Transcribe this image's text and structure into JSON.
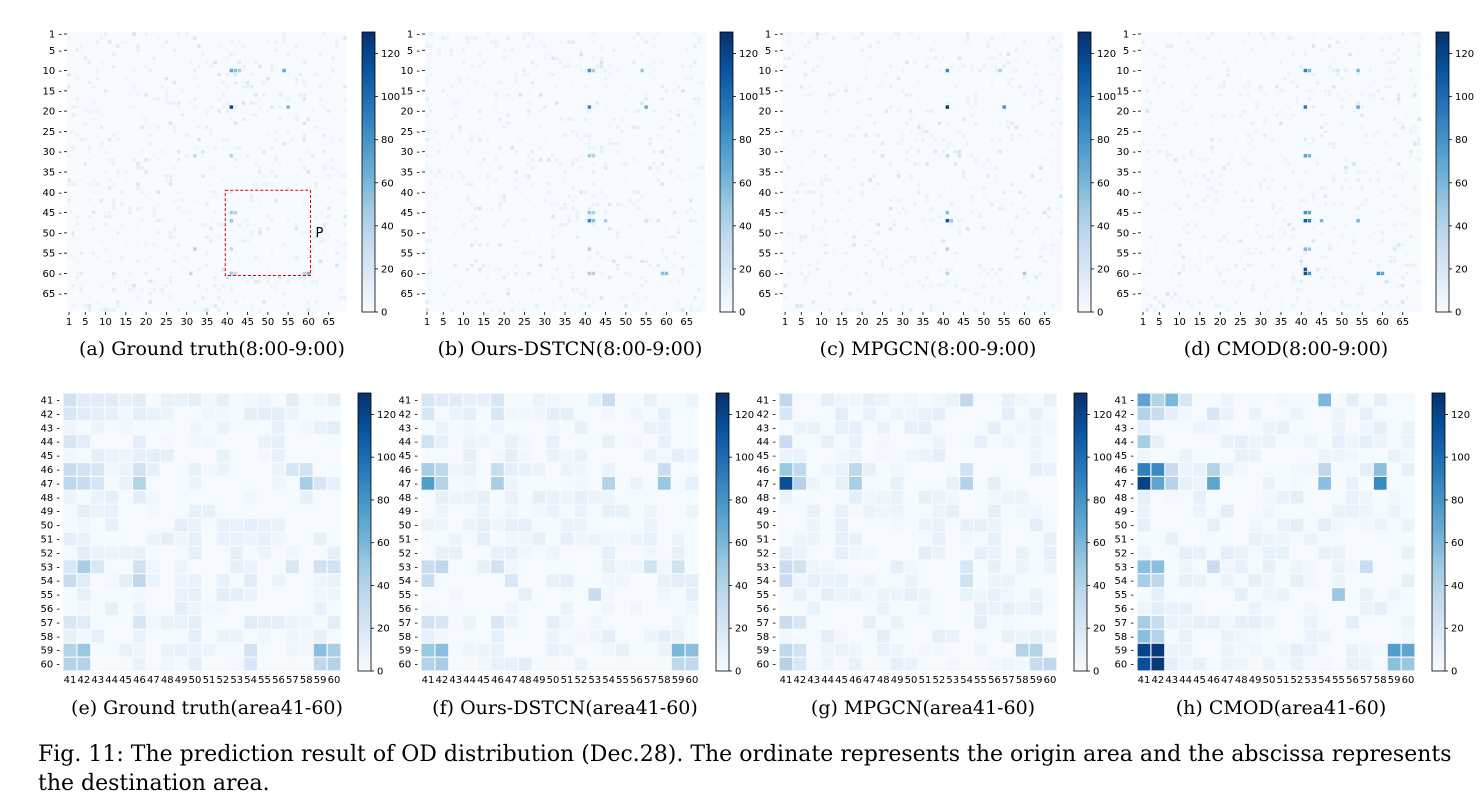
{
  "colorscale": {
    "low": "#f7fbff",
    "mid": "#6baed6",
    "high": "#08306b"
  },
  "figure_caption": "Fig. 11: The prediction result of OD distribution (Dec.28). The ordinate represents the origin area and the abscissa represents the destination area.",
  "chart_data": [
    {
      "type": "heatmap",
      "caption": "(a) Ground truth(8:00-9:00)",
      "scope": "full",
      "x_ticks": [
        "1",
        "5",
        "10",
        "15",
        "20",
        "25",
        "30",
        "35",
        "40",
        "45",
        "50",
        "55",
        "60",
        "65"
      ],
      "y_ticks": [
        "1",
        "5",
        "10",
        "15",
        "20",
        "25",
        "30",
        "35",
        "40",
        "45",
        "50",
        "55",
        "60",
        "65"
      ],
      "colorbar_ticks": [
        "0",
        "20",
        "40",
        "60",
        "80",
        "100",
        "120"
      ],
      "zlim": [
        0,
        130
      ],
      "annotation": "P",
      "hotspots": [
        [
          9,
          40,
          70
        ],
        [
          9,
          41,
          55
        ],
        [
          9,
          42,
          45
        ],
        [
          9,
          53,
          70
        ],
        [
          18,
          40,
          120
        ],
        [
          18,
          54,
          60
        ],
        [
          30,
          40,
          40
        ],
        [
          30,
          31,
          35
        ],
        [
          44,
          40,
          45
        ],
        [
          44,
          41,
          40
        ],
        [
          46,
          40,
          50
        ],
        [
          53,
          40,
          35
        ],
        [
          53,
          31,
          40
        ],
        [
          59,
          40,
          45
        ],
        [
          59,
          41,
          35
        ],
        [
          59,
          59,
          60
        ],
        [
          59,
          58,
          40
        ],
        [
          59,
          30,
          35
        ]
      ]
    },
    {
      "type": "heatmap",
      "caption": "(b) Ours-DSTCN(8:00-9:00)",
      "scope": "full",
      "x_ticks": [
        "1",
        "5",
        "10",
        "15",
        "20",
        "25",
        "30",
        "35",
        "40",
        "45",
        "50",
        "55",
        "60",
        "65"
      ],
      "y_ticks": [
        "1",
        "5",
        "10",
        "15",
        "20",
        "25",
        "30",
        "35",
        "40",
        "45",
        "50",
        "55",
        "60",
        "65"
      ],
      "colorbar_ticks": [
        "0",
        "20",
        "40",
        "60",
        "80",
        "100",
        "120"
      ],
      "zlim": [
        0,
        130
      ],
      "hotspots": [
        [
          9,
          40,
          80
        ],
        [
          9,
          41,
          45
        ],
        [
          9,
          53,
          50
        ],
        [
          18,
          40,
          85
        ],
        [
          18,
          54,
          65
        ],
        [
          30,
          40,
          45
        ],
        [
          30,
          41,
          40
        ],
        [
          44,
          40,
          50
        ],
        [
          44,
          41,
          45
        ],
        [
          46,
          40,
          85
        ],
        [
          46,
          41,
          55
        ],
        [
          46,
          44,
          45
        ],
        [
          53,
          40,
          40
        ],
        [
          59,
          40,
          40
        ],
        [
          59,
          41,
          40
        ],
        [
          59,
          58,
          55
        ],
        [
          59,
          59,
          55
        ]
      ]
    },
    {
      "type": "heatmap",
      "caption": "(c) MPGCN(8:00-9:00)",
      "scope": "full",
      "x_ticks": [
        "1",
        "5",
        "10",
        "15",
        "20",
        "25",
        "30",
        "35",
        "40",
        "45",
        "50",
        "55",
        "60",
        "65"
      ],
      "y_ticks": [
        "1",
        "5",
        "10",
        "15",
        "20",
        "25",
        "30",
        "35",
        "40",
        "45",
        "50",
        "55",
        "60",
        "65"
      ],
      "colorbar_ticks": [
        "0",
        "20",
        "40",
        "60",
        "80",
        "100",
        "120"
      ],
      "zlim": [
        0,
        130
      ],
      "hotspots": [
        [
          9,
          40,
          85
        ],
        [
          9,
          53,
          45
        ],
        [
          18,
          40,
          125
        ],
        [
          18,
          54,
          80
        ],
        [
          30,
          40,
          35
        ],
        [
          44,
          40,
          55
        ],
        [
          46,
          40,
          110
        ],
        [
          46,
          41,
          50
        ],
        [
          53,
          40,
          40
        ],
        [
          59,
          40,
          40
        ],
        [
          59,
          59,
          45
        ]
      ]
    },
    {
      "type": "heatmap",
      "caption": "(d) CMOD(8:00-9:00)",
      "scope": "full",
      "x_ticks": [
        "1",
        "5",
        "10",
        "15",
        "20",
        "25",
        "30",
        "35",
        "40",
        "45",
        "50",
        "55",
        "60",
        "65"
      ],
      "y_ticks": [
        "1",
        "5",
        "10",
        "15",
        "20",
        "25",
        "30",
        "35",
        "40",
        "45",
        "50",
        "55",
        "60",
        "65"
      ],
      "colorbar_ticks": [
        "0",
        "20",
        "40",
        "60",
        "80",
        "100",
        "120"
      ],
      "zlim": [
        0,
        130
      ],
      "hotspots": [
        [
          9,
          40,
          90
        ],
        [
          9,
          41,
          60
        ],
        [
          9,
          53,
          60
        ],
        [
          18,
          40,
          95
        ],
        [
          18,
          53,
          70
        ],
        [
          30,
          40,
          70
        ],
        [
          30,
          41,
          60
        ],
        [
          44,
          40,
          80
        ],
        [
          44,
          41,
          70
        ],
        [
          46,
          40,
          110
        ],
        [
          46,
          41,
          90
        ],
        [
          46,
          44,
          60
        ],
        [
          46,
          53,
          60
        ],
        [
          53,
          40,
          60
        ],
        [
          53,
          41,
          50
        ],
        [
          58,
          40,
          110
        ],
        [
          59,
          40,
          115
        ],
        [
          59,
          41,
          80
        ],
        [
          59,
          58,
          80
        ],
        [
          59,
          59,
          70
        ]
      ]
    },
    {
      "type": "heatmap",
      "caption": "(e) Ground truth(area41-60)",
      "scope": "zoom",
      "labels": [
        "41",
        "42",
        "43",
        "44",
        "45",
        "46",
        "47",
        "48",
        "49",
        "50",
        "51",
        "52",
        "53",
        "54",
        "55",
        "56",
        "57",
        "58",
        "59",
        "60"
      ],
      "colorbar_ticks": [
        "0",
        "20",
        "40",
        "60",
        "80",
        "100",
        "120"
      ],
      "zlim": [
        0,
        130
      ],
      "hotspots": [
        [
          0,
          0,
          25
        ],
        [
          0,
          1,
          15
        ],
        [
          0,
          2,
          15
        ],
        [
          0,
          3,
          15
        ],
        [
          0,
          5,
          15
        ],
        [
          1,
          0,
          20
        ],
        [
          1,
          1,
          15
        ],
        [
          1,
          2,
          12
        ],
        [
          1,
          5,
          12
        ],
        [
          3,
          0,
          20
        ],
        [
          3,
          5,
          12
        ],
        [
          5,
          0,
          30
        ],
        [
          5,
          1,
          25
        ],
        [
          5,
          2,
          20
        ],
        [
          5,
          5,
          25
        ],
        [
          5,
          16,
          20
        ],
        [
          5,
          17,
          25
        ],
        [
          6,
          0,
          35
        ],
        [
          6,
          1,
          30
        ],
        [
          6,
          2,
          20
        ],
        [
          6,
          5,
          40
        ],
        [
          6,
          17,
          45
        ],
        [
          6,
          18,
          20
        ],
        [
          12,
          0,
          20
        ],
        [
          12,
          1,
          45
        ],
        [
          12,
          2,
          20
        ],
        [
          12,
          5,
          25
        ],
        [
          12,
          16,
          20
        ],
        [
          12,
          18,
          25
        ],
        [
          12,
          19,
          25
        ],
        [
          13,
          0,
          30
        ],
        [
          13,
          1,
          15
        ],
        [
          13,
          5,
          35
        ],
        [
          13,
          13,
          15
        ],
        [
          16,
          0,
          20
        ],
        [
          16,
          1,
          15
        ],
        [
          16,
          5,
          20
        ],
        [
          16,
          13,
          15
        ],
        [
          18,
          0,
          40
        ],
        [
          18,
          1,
          50
        ],
        [
          18,
          13,
          25
        ],
        [
          18,
          18,
          55
        ],
        [
          18,
          19,
          45
        ],
        [
          19,
          0,
          40
        ],
        [
          19,
          1,
          40
        ],
        [
          19,
          13,
          20
        ],
        [
          19,
          18,
          35
        ],
        [
          19,
          19,
          40
        ]
      ]
    },
    {
      "type": "heatmap",
      "caption": "(f) Ours-DSTCN(area41-60)",
      "scope": "zoom",
      "labels": [
        "41",
        "42",
        "43",
        "44",
        "45",
        "46",
        "47",
        "48",
        "49",
        "50",
        "51",
        "52",
        "53",
        "54",
        "55",
        "56",
        "57",
        "58",
        "59",
        "60"
      ],
      "colorbar_ticks": [
        "0",
        "20",
        "40",
        "60",
        "80",
        "100",
        "120"
      ],
      "zlim": [
        0,
        130
      ],
      "hotspots": [
        [
          0,
          0,
          20
        ],
        [
          0,
          1,
          15
        ],
        [
          0,
          2,
          15
        ],
        [
          0,
          5,
          20
        ],
        [
          0,
          13,
          30
        ],
        [
          1,
          0,
          20
        ],
        [
          1,
          5,
          20
        ],
        [
          3,
          0,
          25
        ],
        [
          5,
          0,
          45
        ],
        [
          5,
          1,
          35
        ],
        [
          5,
          5,
          30
        ],
        [
          5,
          17,
          30
        ],
        [
          6,
          0,
          75
        ],
        [
          6,
          1,
          40
        ],
        [
          6,
          5,
          45
        ],
        [
          6,
          13,
          40
        ],
        [
          6,
          17,
          50
        ],
        [
          12,
          0,
          30
        ],
        [
          12,
          1,
          35
        ],
        [
          12,
          5,
          25
        ],
        [
          12,
          16,
          25
        ],
        [
          12,
          18,
          25
        ],
        [
          13,
          0,
          30
        ],
        [
          13,
          6,
          20
        ],
        [
          14,
          12,
          30
        ],
        [
          16,
          0,
          25
        ],
        [
          16,
          1,
          20
        ],
        [
          16,
          5,
          20
        ],
        [
          18,
          0,
          50
        ],
        [
          18,
          1,
          55
        ],
        [
          18,
          18,
          60
        ],
        [
          18,
          19,
          55
        ],
        [
          19,
          0,
          40
        ],
        [
          19,
          1,
          45
        ],
        [
          19,
          18,
          35
        ],
        [
          19,
          19,
          35
        ]
      ]
    },
    {
      "type": "heatmap",
      "caption": "(g) MPGCN(area41-60)",
      "scope": "zoom",
      "labels": [
        "41",
        "42",
        "43",
        "44",
        "45",
        "46",
        "47",
        "48",
        "49",
        "50",
        "51",
        "52",
        "53",
        "54",
        "55",
        "56",
        "57",
        "58",
        "59",
        "60"
      ],
      "colorbar_ticks": [
        "0",
        "20",
        "40",
        "60",
        "80",
        "100",
        "120"
      ],
      "zlim": [
        0,
        130
      ],
      "hotspots": [
        [
          0,
          0,
          35
        ],
        [
          0,
          13,
          35
        ],
        [
          1,
          0,
          20
        ],
        [
          3,
          0,
          30
        ],
        [
          5,
          0,
          50
        ],
        [
          5,
          1,
          35
        ],
        [
          5,
          5,
          35
        ],
        [
          5,
          13,
          25
        ],
        [
          6,
          0,
          115
        ],
        [
          6,
          1,
          40
        ],
        [
          6,
          5,
          45
        ],
        [
          6,
          13,
          40
        ],
        [
          12,
          0,
          30
        ],
        [
          12,
          1,
          25
        ],
        [
          12,
          13,
          20
        ],
        [
          13,
          0,
          30
        ],
        [
          13,
          13,
          25
        ],
        [
          16,
          0,
          30
        ],
        [
          16,
          1,
          20
        ],
        [
          18,
          0,
          35
        ],
        [
          18,
          1,
          25
        ],
        [
          18,
          17,
          40
        ],
        [
          18,
          18,
          40
        ],
        [
          19,
          0,
          40
        ],
        [
          19,
          1,
          20
        ],
        [
          19,
          18,
          30
        ],
        [
          19,
          19,
          35
        ]
      ]
    },
    {
      "type": "heatmap",
      "caption": "(h) CMOD(area41-60)",
      "scope": "zoom",
      "labels": [
        "41",
        "42",
        "43",
        "44",
        "45",
        "46",
        "47",
        "48",
        "49",
        "50",
        "51",
        "52",
        "53",
        "54",
        "55",
        "56",
        "57",
        "58",
        "59",
        "60"
      ],
      "colorbar_ticks": [
        "0",
        "20",
        "40",
        "60",
        "80",
        "100",
        "120"
      ],
      "zlim": [
        0,
        130
      ],
      "hotspots": [
        [
          0,
          0,
          70
        ],
        [
          0,
          1,
          40
        ],
        [
          0,
          2,
          60
        ],
        [
          0,
          3,
          20
        ],
        [
          0,
          13,
          60
        ],
        [
          1,
          0,
          40
        ],
        [
          1,
          1,
          30
        ],
        [
          1,
          5,
          20
        ],
        [
          3,
          0,
          45
        ],
        [
          5,
          0,
          90
        ],
        [
          5,
          1,
          85
        ],
        [
          5,
          2,
          30
        ],
        [
          5,
          5,
          40
        ],
        [
          5,
          13,
          35
        ],
        [
          5,
          17,
          55
        ],
        [
          6,
          0,
          120
        ],
        [
          6,
          1,
          70
        ],
        [
          6,
          2,
          40
        ],
        [
          6,
          5,
          70
        ],
        [
          6,
          13,
          55
        ],
        [
          6,
          17,
          85
        ],
        [
          12,
          0,
          55
        ],
        [
          12,
          1,
          55
        ],
        [
          12,
          5,
          30
        ],
        [
          12,
          16,
          30
        ],
        [
          13,
          0,
          45
        ],
        [
          13,
          1,
          35
        ],
        [
          14,
          14,
          50
        ],
        [
          16,
          0,
          45
        ],
        [
          16,
          1,
          30
        ],
        [
          17,
          0,
          55
        ],
        [
          17,
          1,
          40
        ],
        [
          18,
          0,
          120
        ],
        [
          18,
          1,
          125
        ],
        [
          18,
          18,
          75
        ],
        [
          18,
          19,
          70
        ],
        [
          19,
          0,
          115
        ],
        [
          19,
          1,
          125
        ],
        [
          19,
          18,
          55
        ],
        [
          19,
          19,
          50
        ]
      ]
    }
  ]
}
